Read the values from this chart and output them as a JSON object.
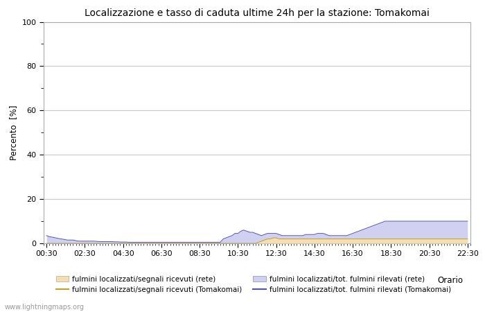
{
  "title": "Localizzazione e tasso di caduta ultime 24h per la stazione: Tomakomai",
  "ylabel": "Percento  [%]",
  "xlabel": "Orario",
  "watermark": "www.lightningmaps.org",
  "ylim": [
    0,
    100
  ],
  "yticks": [
    0,
    20,
    40,
    60,
    80,
    100
  ],
  "yticks_minor": [
    10,
    30,
    50,
    70,
    90
  ],
  "xtick_labels": [
    "00:30",
    "02:30",
    "04:30",
    "06:30",
    "08:30",
    "10:30",
    "12:30",
    "14:30",
    "16:30",
    "18:30",
    "20:30",
    "22:30"
  ],
  "n_points": 144,
  "bg_color": "#ffffff",
  "grid_color": "#c8c8c8",
  "fill_rete_color": "#d0d0f0",
  "fill_tomakomai_color": "#f5deb3",
  "line_rete_color": "#5050b0",
  "line_tomakomai_color": "#c8a020",
  "legend_labels": [
    "fulmini localizzati/segnali ricevuti (rete)",
    "fulmini localizzati/segnali ricevuti (Tomakomai)",
    "fulmini localizzati/tot. fulmini rilevati (rete)",
    "fulmini localizzati/tot. fulmini rilevati (Tomakomai)"
  ],
  "rete_fill_data": [
    3.5,
    3.0,
    2.8,
    2.5,
    2.2,
    2.0,
    1.8,
    1.5,
    1.5,
    1.5,
    1.2,
    1.0,
    1.0,
    1.0,
    1.0,
    1.0,
    1.0,
    0.9,
    0.8,
    0.8,
    0.8,
    0.8,
    0.8,
    0.7,
    0.7,
    0.6,
    0.6,
    0.6,
    0.5,
    0.5,
    0.5,
    0.5,
    0.5,
    0.5,
    0.5,
    0.5,
    0.5,
    0.5,
    0.5,
    0.5,
    0.5,
    0.5,
    0.5,
    0.5,
    0.5,
    0.5,
    0.5,
    0.5,
    0.5,
    0.5,
    0.5,
    0.5,
    0.5,
    0.5,
    0.5,
    0.5,
    0.5,
    0.5,
    0.5,
    0.5,
    2.0,
    2.5,
    3.0,
    3.5,
    4.5,
    4.5,
    5.5,
    6.0,
    5.5,
    5.0,
    5.0,
    4.5,
    4.0,
    3.5,
    4.0,
    4.5,
    4.5,
    4.5,
    4.5,
    4.0,
    3.5,
    3.5,
    3.5,
    3.5,
    3.5,
    3.5,
    3.5,
    3.5,
    4.0,
    4.0,
    4.0,
    4.0,
    4.5,
    4.5,
    4.5,
    4.0,
    3.5,
    3.5,
    3.5,
    3.5,
    3.5,
    3.5,
    3.5,
    4.0,
    4.5,
    5.0,
    5.5,
    6.0,
    6.5,
    7.0,
    7.5,
    8.0,
    8.5,
    9.0,
    9.5,
    10.0,
    10.0,
    10.0,
    10.0,
    10.0,
    10.0,
    10.0,
    10.0,
    10.0,
    10.0,
    10.0,
    10.0,
    10.0,
    10.0,
    10.0,
    10.0,
    10.0,
    10.0,
    10.0,
    10.0,
    10.0,
    10.0,
    10.0,
    10.0,
    10.0,
    10.0,
    10.0,
    10.0,
    10.0
  ],
  "tomakomai_fill_data": [
    0,
    0,
    0,
    0,
    0,
    0,
    0,
    0,
    0,
    0,
    0,
    0,
    0,
    0,
    0,
    0,
    0,
    0,
    0,
    0,
    0,
    0,
    0,
    0,
    0,
    0,
    0,
    0,
    0,
    0,
    0,
    0,
    0,
    0,
    0,
    0,
    0,
    0,
    0,
    0,
    0,
    0,
    0,
    0,
    0,
    0,
    0,
    0,
    0,
    0,
    0,
    0,
    0,
    0,
    0,
    0,
    0,
    0,
    0,
    0,
    0,
    0,
    0,
    0,
    0,
    0,
    0,
    0,
    0,
    0,
    0,
    0,
    0.5,
    1.0,
    1.5,
    2.0,
    2.0,
    2.5,
    2.5,
    2.0,
    2.0,
    2.0,
    2.0,
    2.0,
    2.0,
    2.0,
    2.0,
    2.0,
    2.0,
    2.0,
    2.0,
    2.0,
    2.0,
    2.0,
    2.0,
    2.0,
    2.0,
    2.0,
    2.0,
    2.0,
    2.0,
    2.0,
    2.0,
    2.0,
    2.0,
    2.0,
    2.0,
    2.0,
    2.0,
    2.0,
    2.0,
    2.0,
    2.0,
    2.0,
    2.0,
    2.0,
    2.0,
    2.0,
    2.0,
    2.0,
    2.0,
    2.0,
    2.0,
    2.0,
    2.0,
    2.0,
    2.0,
    2.0,
    2.0,
    2.0,
    2.0,
    2.0,
    2.0,
    2.0,
    2.0,
    2.0,
    2.0,
    2.0,
    2.0,
    2.0,
    2.0,
    2.0,
    2.0,
    2.0
  ]
}
